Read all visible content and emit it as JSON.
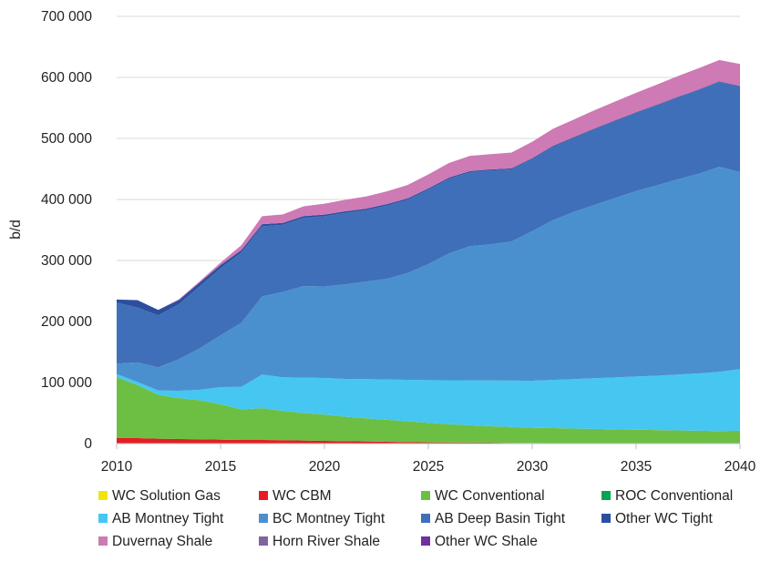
{
  "chart_data": {
    "type": "area",
    "stacked": true,
    "xlabel": "",
    "ylabel": "b/d",
    "ylim": [
      0,
      700000
    ],
    "xlim": [
      2010,
      2040
    ],
    "y_ticks": [
      "0",
      "100 000",
      "200 000",
      "300 000",
      "400 000",
      "500 000",
      "600 000",
      "700 000"
    ],
    "y_tick_values": [
      0,
      100000,
      200000,
      300000,
      400000,
      500000,
      600000,
      700000
    ],
    "x_ticks": [
      "2010",
      "2015",
      "2020",
      "2025",
      "2030",
      "2035",
      "2040"
    ],
    "x_tick_values": [
      2010,
      2015,
      2020,
      2025,
      2030,
      2035,
      2040
    ],
    "grid": "horizontal",
    "legend_position": "bottom",
    "x": [
      2010,
      2011,
      2012,
      2013,
      2014,
      2015,
      2016,
      2017,
      2018,
      2019,
      2020,
      2021,
      2022,
      2023,
      2024,
      2025,
      2026,
      2027,
      2028,
      2029,
      2030,
      2031,
      2032,
      2033,
      2034,
      2035,
      2036,
      2037,
      2038,
      2039,
      2040
    ],
    "series": [
      {
        "name": "WC Solution Gas",
        "color": "#f2e500",
        "values": [
          0,
          0,
          0,
          0,
          0,
          0,
          0,
          0,
          0,
          0,
          0,
          0,
          0,
          0,
          0,
          0,
          0,
          0,
          0,
          0,
          0,
          0,
          0,
          0,
          0,
          0,
          0,
          0,
          0,
          0,
          0
        ]
      },
      {
        "name": "WC CBM",
        "color": "#e31e24",
        "values": [
          9000,
          9000,
          8000,
          7500,
          7000,
          6500,
          6000,
          6000,
          5500,
          5000,
          4500,
          4000,
          3500,
          3000,
          2500,
          2000,
          1800,
          1600,
          1400,
          1200,
          1000,
          800,
          600,
          500,
          400,
          300,
          200,
          100,
          0,
          0,
          0
        ]
      },
      {
        "name": "WC Conventional",
        "color": "#6dbf44",
        "values": [
          100000,
          87000,
          72000,
          67000,
          64000,
          58000,
          50000,
          52000,
          48000,
          45000,
          43000,
          40000,
          38000,
          36000,
          34000,
          32000,
          30000,
          28500,
          27000,
          26000,
          25000,
          24500,
          24000,
          23500,
          23000,
          22500,
          22000,
          21500,
          21000,
          20500,
          21000
        ]
      },
      {
        "name": "ROC Conventional",
        "color": "#00a651",
        "values": [
          0,
          0,
          0,
          0,
          0,
          0,
          0,
          0,
          0,
          0,
          0,
          0,
          0,
          0,
          0,
          0,
          0,
          0,
          0,
          0,
          0,
          0,
          0,
          0,
          0,
          0,
          0,
          0,
          0,
          0,
          0
        ]
      },
      {
        "name": "AB Montney Tight",
        "color": "#45c7f2",
        "values": [
          5000,
          5000,
          7000,
          12000,
          17000,
          28000,
          37000,
          55000,
          55000,
          58000,
          60000,
          62000,
          64000,
          66000,
          68000,
          70000,
          72000,
          73500,
          75000,
          76000,
          77000,
          79000,
          81000,
          83000,
          85000,
          87000,
          89000,
          91500,
          94000,
          97000,
          101000
        ]
      },
      {
        "name": "BC Montney Tight",
        "color": "#4a90cf",
        "values": [
          17000,
          32000,
          38000,
          52000,
          68000,
          85000,
          105000,
          128000,
          140000,
          150000,
          150000,
          155000,
          160000,
          165000,
          175000,
          190000,
          208000,
          220000,
          223000,
          228000,
          245000,
          262000,
          274000,
          284000,
          294000,
          304000,
          312000,
          320000,
          327000,
          336000,
          323000
        ]
      },
      {
        "name": "AB Deep Basin Tight",
        "color": "#3f6fb8",
        "values": [
          100000,
          90000,
          85000,
          90000,
          102000,
          110000,
          115000,
          115000,
          110000,
          112000,
          115000,
          117000,
          117000,
          120000,
          120000,
          122000,
          122000,
          121000,
          121000,
          118000,
          118000,
          120000,
          121000,
          124000,
          126000,
          128000,
          131000,
          134000,
          137000,
          139000,
          140000
        ]
      },
      {
        "name": "Other WC Tight",
        "color": "#2b4f9e",
        "values": [
          5000,
          12000,
          9000,
          7000,
          6000,
          5000,
          4000,
          3500,
          3000,
          2800,
          2600,
          2500,
          2400,
          2300,
          2200,
          2100,
          2000,
          1900,
          1800,
          1700,
          1600,
          1500,
          1400,
          1300,
          1200,
          1100,
          1000,
          1000,
          1000,
          1000,
          1000
        ]
      },
      {
        "name": "Duvernay Shale",
        "color": "#cd7ab5",
        "values": [
          0,
          0,
          0,
          1000,
          2000,
          4000,
          8000,
          13000,
          14000,
          16000,
          18000,
          19000,
          20000,
          21000,
          22000,
          23000,
          24000,
          25000,
          25000,
          26000,
          27000,
          28000,
          29000,
          30000,
          31000,
          32000,
          33000,
          34000,
          35000,
          35000,
          36000
        ]
      },
      {
        "name": "Horn River Shale",
        "color": "#8064a2",
        "values": [
          0,
          0,
          0,
          0,
          0,
          0,
          0,
          0,
          0,
          0,
          0,
          0,
          0,
          0,
          0,
          0,
          0,
          0,
          0,
          0,
          0,
          0,
          0,
          0,
          0,
          0,
          0,
          0,
          0,
          0,
          0
        ]
      },
      {
        "name": "Other WC Shale",
        "color": "#7030a0",
        "values": [
          0,
          0,
          0,
          0,
          0,
          0,
          0,
          0,
          0,
          0,
          0,
          0,
          0,
          0,
          0,
          0,
          0,
          0,
          0,
          0,
          0,
          0,
          0,
          0,
          0,
          0,
          0,
          0,
          0,
          0,
          0
        ]
      }
    ]
  }
}
